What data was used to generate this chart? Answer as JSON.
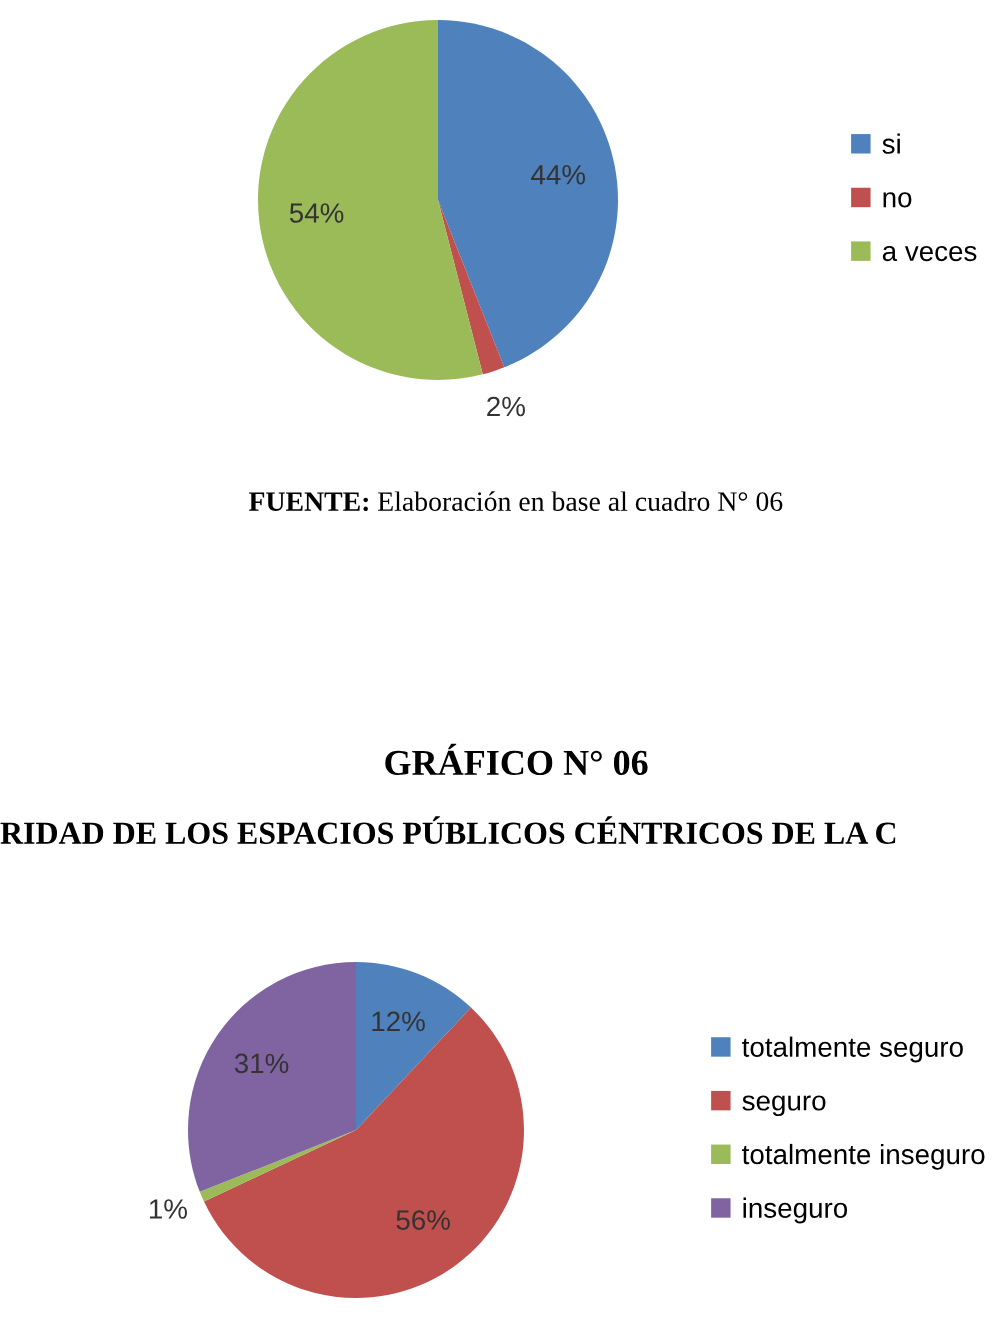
{
  "chart_data": [
    {
      "type": "pie",
      "categories": [
        "si",
        "no",
        "a veces"
      ],
      "values": [
        44,
        2,
        54
      ],
      "colors": [
        "#4f81bd",
        "#c0504d",
        "#9bbb59"
      ],
      "value_labels": [
        "44%",
        "2%",
        "54%"
      ],
      "legend": "right",
      "annotations": [
        "FUENTE: Elaboración en base al cuadro N° 06"
      ]
    },
    {
      "type": "pie",
      "title": "GRÁFICO N° 06",
      "subtitle": "RIDAD DE LOS ESPACIOS PÚBLICOS CÉNTRICOS DE LA C",
      "categories": [
        "totalmente seguro",
        "seguro",
        "totalmente inseguro",
        "inseguro"
      ],
      "values": [
        12,
        56,
        1,
        31
      ],
      "colors": [
        "#4f81bd",
        "#c0504d",
        "#9bbb59",
        "#8064a2"
      ],
      "value_labels": [
        "12%",
        "56%",
        "1%",
        "31%"
      ],
      "legend": "right"
    }
  ]
}
